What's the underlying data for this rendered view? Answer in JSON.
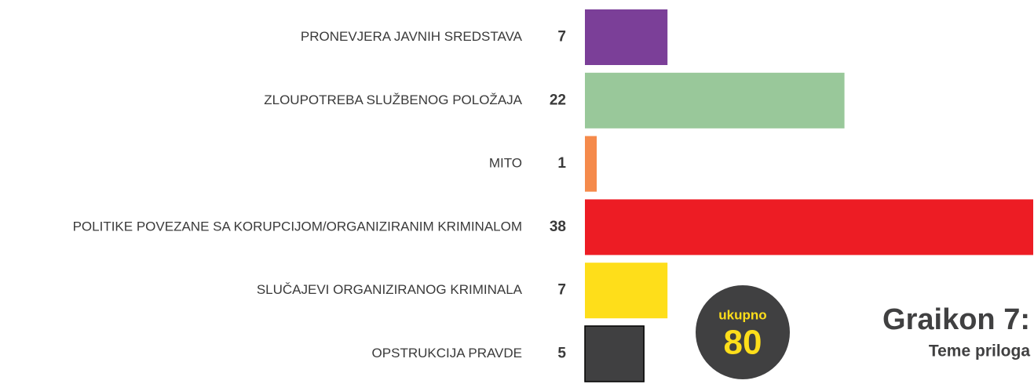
{
  "chart_data": {
    "type": "bar",
    "title": "Graikon 7:",
    "subtitle": "Teme priloga",
    "total_label": "ukupno",
    "total": 80,
    "categories": [
      "PRONEVJERA JAVNIH SREDSTAVA",
      "ZLOUPOTREBA SLUŽBENOG POLOŽAJA",
      "MITO",
      "POLITIKE POVEZANE SA KORUPCIJOM/ORGANIZIRANIM KRIMINALOM",
      "SLUČAJEVI ORGANIZIRANOG KRIMINALA",
      "OPSTRUKCIJA PRAVDE"
    ],
    "values": [
      7,
      22,
      1,
      38,
      7,
      5
    ],
    "colors": [
      "#7b3f98",
      "#99c89a",
      "#f58a4b",
      "#ed1c24",
      "#fede1a",
      "#404041"
    ]
  }
}
